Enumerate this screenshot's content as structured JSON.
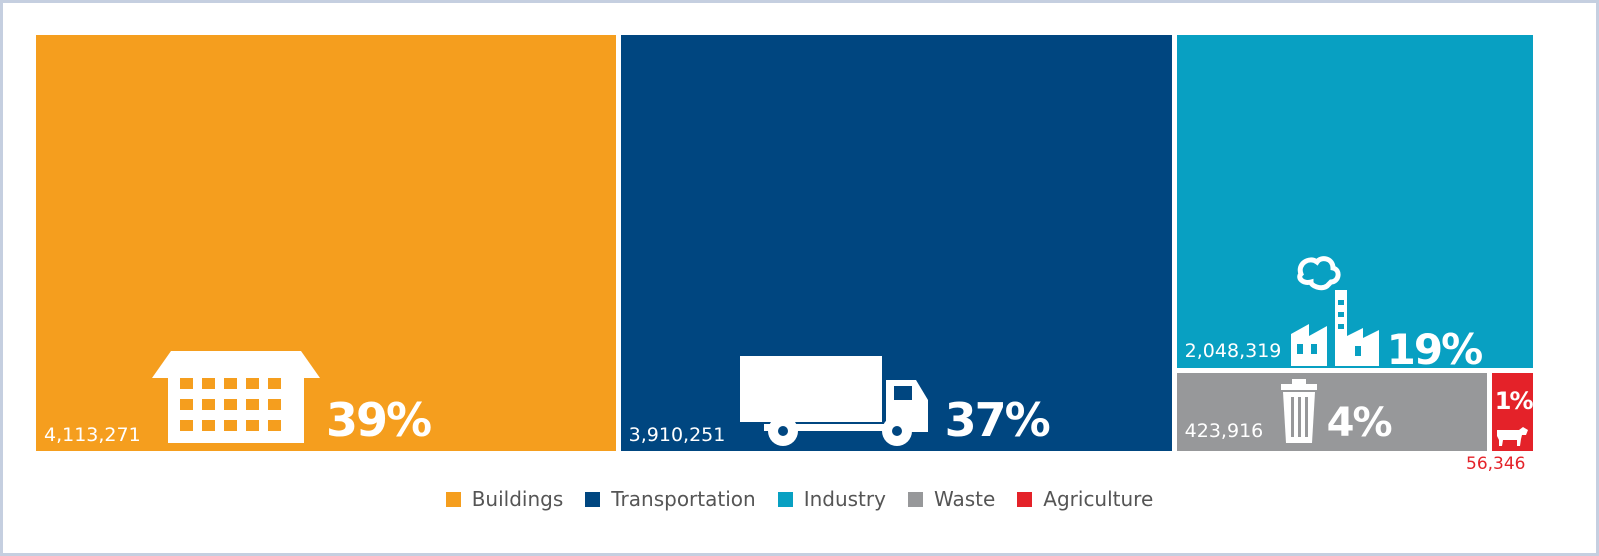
{
  "chart_data": {
    "type": "treemap",
    "title": "",
    "series": [
      {
        "name": "Buildings",
        "value": 4113271,
        "value_label": "4,113,271",
        "percent_label": "39%",
        "color": "#f59e1e",
        "icon": "building-icon"
      },
      {
        "name": "Transportation",
        "value": 3910251,
        "value_label": "3,910,251",
        "percent_label": "37%",
        "color": "#004680",
        "icon": "truck-icon"
      },
      {
        "name": "Industry",
        "value": 2048319,
        "value_label": "2,048,319",
        "percent_label": "19%",
        "color": "#08a0c2",
        "icon": "factory-icon"
      },
      {
        "name": "Waste",
        "value": 423916,
        "value_label": "423,916",
        "percent_label": "4%",
        "color": "#97989a",
        "icon": "trash-can-icon"
      },
      {
        "name": "Agriculture",
        "value": 56346,
        "value_label": "56,346",
        "percent_label": "1%",
        "color": "#e42229",
        "icon": "cow-icon"
      }
    ],
    "legend": {
      "placement": "bottom-center"
    }
  }
}
